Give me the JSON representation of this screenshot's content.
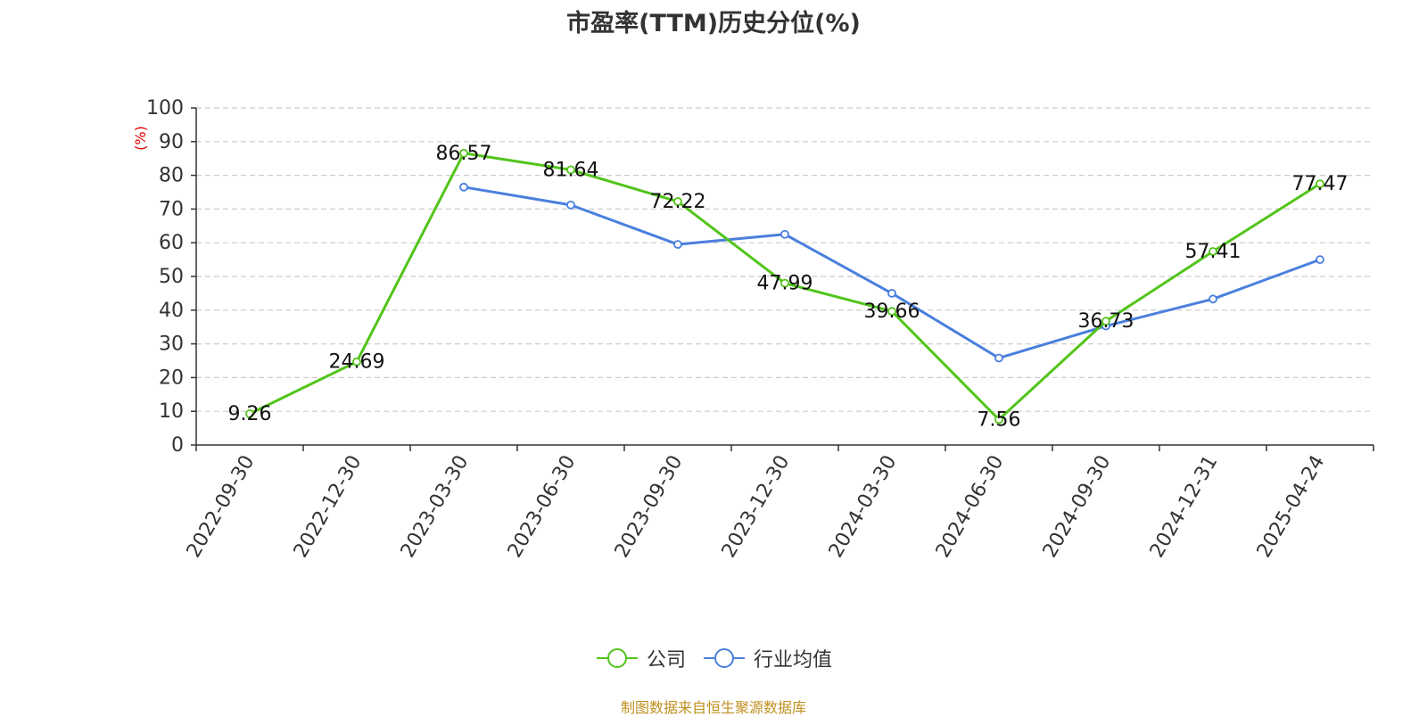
{
  "chart_data": {
    "type": "line",
    "title": "市盈率(TTM)历史分位(%)",
    "ylabel": "(%)",
    "ylim": [
      0,
      100
    ],
    "yticks": [
      0,
      10,
      20,
      30,
      40,
      50,
      60,
      70,
      80,
      90,
      100
    ],
    "categories": [
      "2022-09-30",
      "2022-12-30",
      "2023-03-30",
      "2023-06-30",
      "2023-09-30",
      "2023-12-30",
      "2024-03-30",
      "2024-06-30",
      "2024-09-30",
      "2024-12-31",
      "2025-04-24"
    ],
    "grid": true,
    "legend_position": "bottom",
    "series": [
      {
        "name": "公司",
        "color": "#52c41a",
        "show_labels": true,
        "values": [
          9.26,
          24.69,
          86.57,
          81.64,
          72.22,
          47.99,
          39.66,
          7.56,
          36.73,
          57.41,
          77.47
        ]
      },
      {
        "name": "行业均值",
        "color": "#4a7fde",
        "show_labels": false,
        "values": [
          null,
          null,
          76.5,
          71.2,
          59.5,
          62.5,
          45.0,
          25.8,
          35.3,
          43.3,
          55.0
        ]
      }
    ],
    "source_note": "制图数据来自恒生聚源数据库"
  }
}
